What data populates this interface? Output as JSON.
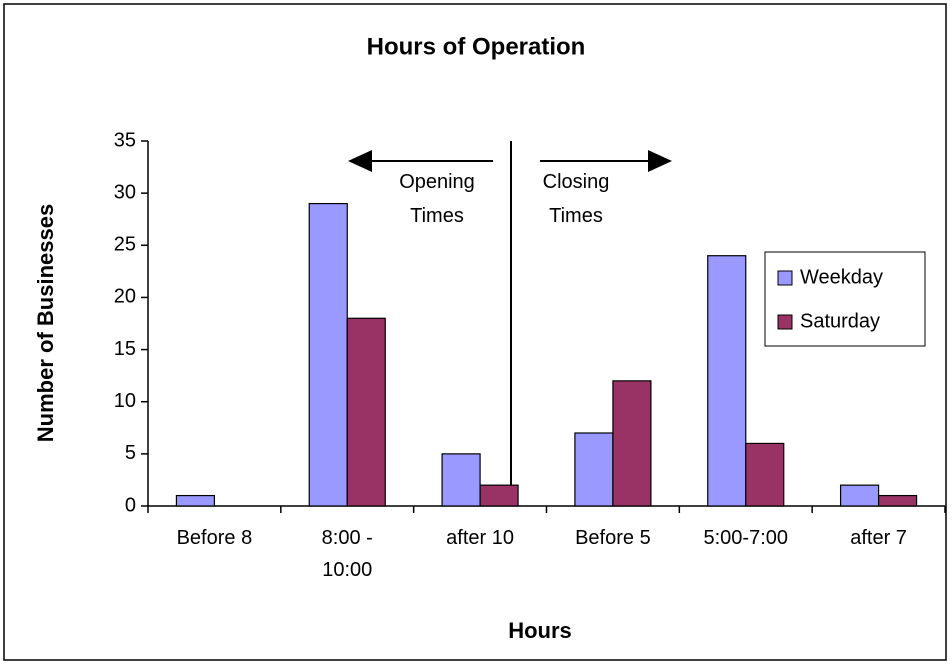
{
  "chart_data": {
    "type": "bar",
    "title": "Hours of Operation",
    "x_label": "Hours",
    "y_label": "Number of Businesses",
    "categories": [
      "Before 8",
      "8:00 - 10:00",
      "after 10",
      "Before 5",
      "5:00-7:00",
      "after 7"
    ],
    "series": [
      {
        "name": "Weekday",
        "color": "#9999ff",
        "values": [
          1,
          29,
          5,
          7,
          24,
          2
        ]
      },
      {
        "name": "Saturday",
        "color": "#993366",
        "values": [
          0,
          18,
          2,
          12,
          6,
          1
        ]
      }
    ],
    "ylim": [
      0,
      35
    ],
    "yticks": [
      0,
      5,
      10,
      15,
      20,
      25,
      30,
      35
    ],
    "annotations": [
      "Opening Times",
      "Closing Times"
    ],
    "legend": "right",
    "grid": false
  }
}
